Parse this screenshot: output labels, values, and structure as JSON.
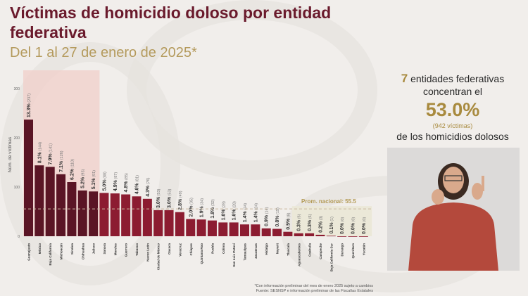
{
  "header": {
    "title": "Víctimas de homicidio doloso por entidad federativa",
    "subtitle": "Del 1 al 27 de enero de 2025*"
  },
  "summary": {
    "count": "7",
    "line1": "entidades federativas",
    "line2": "concentran el",
    "percent": "53.0%",
    "victims": "(942 víctimas)",
    "line3": "de los homicidios dolosos"
  },
  "footnote": {
    "line1": "*Con información preliminar del mes de enero 2025 sujeto a cambios",
    "line2": "Fuente: SESNSP e información preliminar de las Fiscalías Estatales"
  },
  "chart_data": {
    "type": "bar",
    "ylabel": "Núm. de víctimas",
    "ylim": [
      0,
      300
    ],
    "yticks": [
      0,
      100,
      200,
      300
    ],
    "grid": false,
    "colors": {
      "top7": "#5a1525",
      "rest": "#8c1c31",
      "highlight": "#f0cfca",
      "average": "#b39a55"
    },
    "average": {
      "label": "Prom. nacional: 55.5",
      "value": 55.5
    },
    "categories": [
      "Guanajuato",
      "México",
      "Baja California",
      "Michoacán",
      "Sinaloa",
      "Chihuahua",
      "Jalisco",
      "Sonora",
      "Morelos",
      "Guerrero",
      "Tabasco",
      "Nuevo León",
      "Ciudad de México",
      "Oaxaca",
      "Veracruz",
      "Chiapas",
      "Quintana Roo",
      "Puebla",
      "Colima",
      "San Luis Potosí",
      "Tamaulipas",
      "Zacatecas",
      "Hidalgo",
      "Nayarit",
      "Tlaxcala",
      "Aguascalientes",
      "Coahuila",
      "Campeche",
      "Baja California Sur",
      "Durango",
      "Querétaro",
      "Yucatán"
    ],
    "values": [
      237,
      144,
      141,
      126,
      110,
      93,
      91,
      88,
      87,
      85,
      81,
      76,
      53,
      53,
      49,
      35,
      34,
      32,
      28,
      28,
      24,
      24,
      16,
      15,
      9,
      6,
      6,
      3,
      1,
      0,
      0,
      0
    ],
    "percent_labels": [
      "13.3%",
      "8.1%",
      "7.9%",
      "7.1%",
      "6.2%",
      "5.2%",
      "5.1%",
      "5.0%",
      "4.9%",
      "4.8%",
      "4.6%",
      "4.3%",
      "3.0%",
      "3.0%",
      "2.8%",
      "2.0%",
      "1.9%",
      "1.8%",
      "1.6%",
      "1.6%",
      "1.4%",
      "1.4%",
      "0.9%",
      "0.8%",
      "0.5%",
      "0.3%",
      "0.3%",
      "0.2%",
      "0.1%",
      "0.0%",
      "0.0%",
      "0.0%"
    ],
    "highlighted_count": 7
  }
}
